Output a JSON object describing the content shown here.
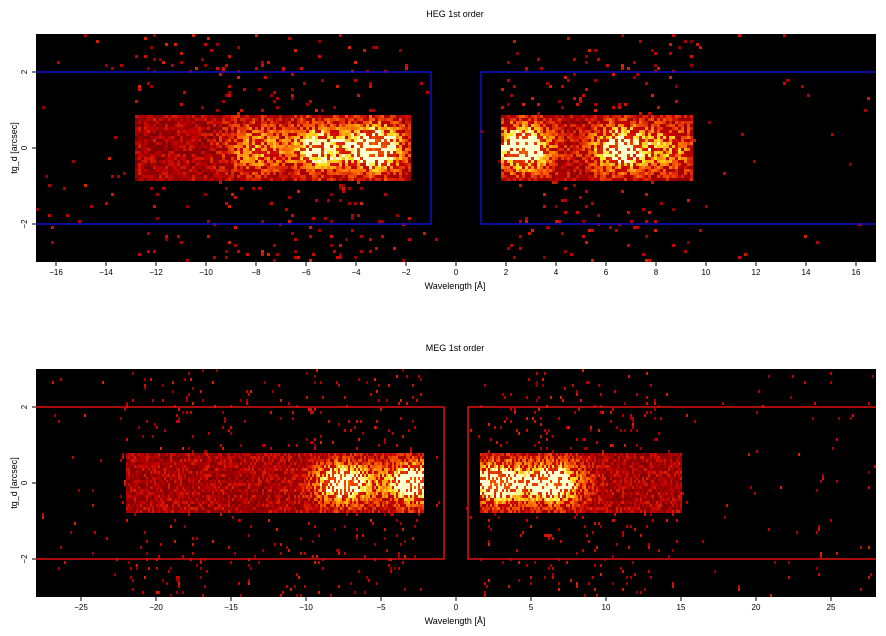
{
  "chart_data": [
    {
      "type": "heatmap",
      "title": "HEG 1st order",
      "xlabel": "Wavelength [Å]",
      "ylabel": "tg_d [arcsec]",
      "xlim": [
        -16.8,
        16.8
      ],
      "ylim": [
        -3.0,
        3.0
      ],
      "xticks": [
        -16,
        -14,
        -12,
        -10,
        -8,
        -6,
        -4,
        -2,
        0,
        2,
        4,
        6,
        8,
        10,
        12,
        14,
        16
      ],
      "yticks": [
        -2,
        0,
        2
      ],
      "colormap": "black-red-orange-yellow-white",
      "background": "#000000",
      "box_color": "#1010c8",
      "boxes": [
        {
          "x": [
            -16.8,
            -1.0
          ],
          "y": [
            -2.0,
            2.0
          ]
        },
        {
          "x": [
            1.0,
            16.8
          ],
          "y": [
            -2.0,
            2.0
          ]
        }
      ],
      "band": {
        "y_center": 0.0,
        "y_halfwidth": 0.9,
        "x_neg_range": [
          -12.8,
          -1.8
        ],
        "x_pos_range": [
          1.8,
          9.5
        ]
      },
      "bright_regions": [
        {
          "x": -3.2,
          "y": 0.0,
          "intensity": 1.0
        },
        {
          "x": -5.5,
          "y": 0.0,
          "intensity": 0.75
        },
        {
          "x": -8.0,
          "y": 0.0,
          "intensity": 0.55
        },
        {
          "x": 2.7,
          "y": 0.0,
          "intensity": 1.0
        },
        {
          "x": 6.5,
          "y": 0.0,
          "intensity": 0.85
        },
        {
          "x": 8.5,
          "y": 0.0,
          "intensity": 0.5
        }
      ]
    },
    {
      "type": "heatmap",
      "title": "MEG 1st order",
      "xlabel": "Wavelength [Å]",
      "ylabel": "tg_d [arcsec]",
      "xlim": [
        -28.0,
        28.0
      ],
      "ylim": [
        -3.0,
        3.0
      ],
      "xticks": [
        -25,
        -20,
        -15,
        -10,
        -5,
        0,
        5,
        10,
        15,
        20,
        25
      ],
      "yticks": [
        -2,
        0,
        2
      ],
      "colormap": "black-red-orange-yellow-white",
      "background": "#000000",
      "box_color": "#e01010",
      "boxes": [
        {
          "x": [
            -28.0,
            -0.8
          ],
          "y": [
            -2.0,
            2.0
          ]
        },
        {
          "x": [
            0.8,
            28.0
          ],
          "y": [
            -2.0,
            2.0
          ]
        }
      ],
      "band": {
        "y_center": 0.0,
        "y_halfwidth": 0.75,
        "x_neg_range": [
          -22.0,
          -2.2
        ],
        "x_pos_range": [
          1.6,
          15.0
        ]
      },
      "bright_regions": [
        {
          "x": -7.5,
          "y": 0.0,
          "intensity": 1.0
        },
        {
          "x": -2.8,
          "y": 0.0,
          "intensity": 1.0
        },
        {
          "x": 2.7,
          "y": 0.0,
          "intensity": 1.0
        },
        {
          "x": 6.5,
          "y": 0.0,
          "intensity": 1.0
        }
      ]
    }
  ]
}
